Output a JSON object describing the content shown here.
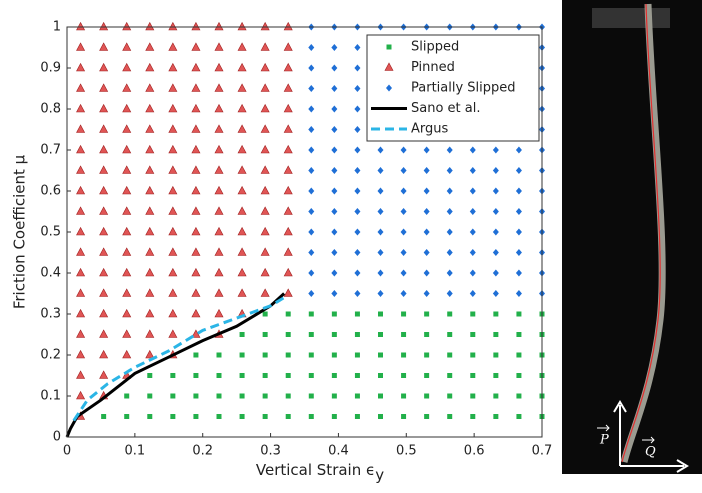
{
  "chart_data": {
    "type": "scatter",
    "xlabel": "Vertical Strain ϵ",
    "xlabel_sub": "y",
    "ylabel": "Friction Coefficient μ",
    "xlim": [
      0,
      0.7
    ],
    "ylim": [
      0,
      1
    ],
    "xticks": [
      0,
      0.1,
      0.2,
      0.3,
      0.4,
      0.5,
      0.6,
      0.7
    ],
    "yticks": [
      0,
      0.1,
      0.2,
      0.3,
      0.4,
      0.5,
      0.6,
      0.7,
      0.8,
      0.9,
      1
    ],
    "legend": "upper right",
    "annotations": [
      "P",
      "Q"
    ],
    "series": [
      {
        "name": "Slipped",
        "marker": "square",
        "color": "#22b04a",
        "columns": [
          {
            "x": 0.054,
            "y": [
              0.05
            ]
          },
          {
            "x": 0.088,
            "y": [
              0.05,
              0.1
            ]
          },
          {
            "x": 0.122,
            "y": [
              0.05,
              0.1,
              0.15
            ]
          },
          {
            "x": 0.156,
            "y": [
              0.05,
              0.1,
              0.15
            ]
          },
          {
            "x": 0.19,
            "y": [
              0.05,
              0.1,
              0.15,
              0.2
            ]
          },
          {
            "x": 0.224,
            "y": [
              0.05,
              0.1,
              0.15,
              0.2
            ]
          },
          {
            "x": 0.258,
            "y": [
              0.05,
              0.1,
              0.15,
              0.2,
              0.25
            ]
          },
          {
            "x": 0.292,
            "y": [
              0.05,
              0.1,
              0.15,
              0.2,
              0.25,
              0.3
            ]
          },
          {
            "x": 0.326,
            "y": [
              0.05,
              0.1,
              0.15,
              0.2,
              0.25,
              0.3
            ]
          },
          {
            "x": 0.36,
            "y": [
              0.05,
              0.1,
              0.15,
              0.2,
              0.25,
              0.3
            ]
          },
          {
            "x": 0.394,
            "y": [
              0.05,
              0.1,
              0.15,
              0.2,
              0.25,
              0.3
            ]
          },
          {
            "x": 0.428,
            "y": [
              0.05,
              0.1,
              0.15,
              0.2,
              0.25,
              0.3
            ]
          },
          {
            "x": 0.462,
            "y": [
              0.05,
              0.1,
              0.15,
              0.2,
              0.25,
              0.3
            ]
          },
          {
            "x": 0.496,
            "y": [
              0.05,
              0.1,
              0.15,
              0.2,
              0.25,
              0.3
            ]
          },
          {
            "x": 0.53,
            "y": [
              0.05,
              0.1,
              0.15,
              0.2,
              0.25,
              0.3
            ]
          },
          {
            "x": 0.564,
            "y": [
              0.05,
              0.1,
              0.15,
              0.2,
              0.25,
              0.3
            ]
          },
          {
            "x": 0.598,
            "y": [
              0.05,
              0.1,
              0.15,
              0.2,
              0.25,
              0.3
            ]
          },
          {
            "x": 0.632,
            "y": [
              0.05,
              0.1,
              0.15,
              0.2,
              0.25,
              0.3
            ]
          },
          {
            "x": 0.666,
            "y": [
              0.05,
              0.1,
              0.15,
              0.2,
              0.25,
              0.3
            ]
          },
          {
            "x": 0.7,
            "y": [
              0.05,
              0.1,
              0.15,
              0.2,
              0.25,
              0.3
            ]
          }
        ]
      },
      {
        "name": "Pinned",
        "marker": "triangle",
        "color": "#e05555",
        "columns": [
          {
            "x": 0.02,
            "y": [
              0.05,
              0.1,
              0.15,
              0.2,
              0.25,
              0.3,
              0.35,
              0.4,
              0.45,
              0.5,
              0.55,
              0.6,
              0.65,
              0.7,
              0.75,
              0.8,
              0.85,
              0.9,
              0.95,
              1
            ]
          },
          {
            "x": 0.054,
            "y": [
              0.1,
              0.15,
              0.2,
              0.25,
              0.3,
              0.35,
              0.4,
              0.45,
              0.5,
              0.55,
              0.6,
              0.65,
              0.7,
              0.75,
              0.8,
              0.85,
              0.9,
              0.95,
              1
            ]
          },
          {
            "x": 0.088,
            "y": [
              0.15,
              0.2,
              0.25,
              0.3,
              0.35,
              0.4,
              0.45,
              0.5,
              0.55,
              0.6,
              0.65,
              0.7,
              0.75,
              0.8,
              0.85,
              0.9,
              0.95,
              1
            ]
          },
          {
            "x": 0.122,
            "y": [
              0.2,
              0.25,
              0.3,
              0.35,
              0.4,
              0.45,
              0.5,
              0.55,
              0.6,
              0.65,
              0.7,
              0.75,
              0.8,
              0.85,
              0.9,
              0.95,
              1
            ]
          },
          {
            "x": 0.156,
            "y": [
              0.2,
              0.25,
              0.3,
              0.35,
              0.4,
              0.45,
              0.5,
              0.55,
              0.6,
              0.65,
              0.7,
              0.75,
              0.8,
              0.85,
              0.9,
              0.95,
              1
            ]
          },
          {
            "x": 0.19,
            "y": [
              0.25,
              0.3,
              0.35,
              0.4,
              0.45,
              0.5,
              0.55,
              0.6,
              0.65,
              0.7,
              0.75,
              0.8,
              0.85,
              0.9,
              0.95,
              1
            ]
          },
          {
            "x": 0.224,
            "y": [
              0.25,
              0.3,
              0.35,
              0.4,
              0.45,
              0.5,
              0.55,
              0.6,
              0.65,
              0.7,
              0.75,
              0.8,
              0.85,
              0.9,
              0.95,
              1
            ]
          },
          {
            "x": 0.258,
            "y": [
              0.3,
              0.35,
              0.4,
              0.45,
              0.5,
              0.55,
              0.6,
              0.65,
              0.7,
              0.75,
              0.8,
              0.85,
              0.9,
              0.95,
              1
            ]
          },
          {
            "x": 0.292,
            "y": [
              0.35,
              0.4,
              0.45,
              0.5,
              0.55,
              0.6,
              0.65,
              0.7,
              0.75,
              0.8,
              0.85,
              0.9,
              0.95,
              1
            ]
          },
          {
            "x": 0.326,
            "y": [
              0.35,
              0.4,
              0.45,
              0.5,
              0.55,
              0.6,
              0.65,
              0.7,
              0.75,
              0.8,
              0.85,
              0.9,
              0.95,
              1
            ]
          }
        ]
      },
      {
        "name": "Partially Slipped",
        "marker": "diamond",
        "color": "#1f6fd6",
        "columns": [
          {
            "x": 0.36,
            "y": [
              0.35,
              0.4,
              0.45,
              0.5,
              0.55,
              0.6,
              0.65,
              0.7,
              0.75,
              0.8,
              0.85,
              0.9,
              0.95,
              1
            ]
          },
          {
            "x": 0.394,
            "y": [
              0.35,
              0.4,
              0.45,
              0.5,
              0.55,
              0.6,
              0.65,
              0.7,
              0.75,
              0.8,
              0.85,
              0.9,
              0.95,
              1
            ]
          },
          {
            "x": 0.428,
            "y": [
              0.35,
              0.4,
              0.45,
              0.5,
              0.55,
              0.6,
              0.65,
              0.7,
              0.75,
              0.8,
              0.85,
              0.9,
              0.95,
              1
            ]
          },
          {
            "x": 0.462,
            "y": [
              0.35,
              0.4,
              0.45,
              0.5,
              0.55,
              0.6,
              0.65,
              0.7,
              0.75,
              0.8,
              0.85,
              0.9,
              0.95,
              1
            ]
          },
          {
            "x": 0.496,
            "y": [
              0.35,
              0.4,
              0.45,
              0.5,
              0.55,
              0.6,
              0.65,
              0.7,
              0.75,
              0.8,
              0.85,
              0.9,
              0.95,
              1
            ]
          },
          {
            "x": 0.53,
            "y": [
              0.35,
              0.4,
              0.45,
              0.5,
              0.55,
              0.6,
              0.65,
              0.7,
              0.75,
              0.8,
              0.85,
              0.9,
              0.95,
              1
            ]
          },
          {
            "x": 0.564,
            "y": [
              0.35,
              0.4,
              0.45,
              0.5,
              0.55,
              0.6,
              0.65,
              0.7,
              0.75,
              0.8,
              0.85,
              0.9,
              0.95,
              1
            ]
          },
          {
            "x": 0.598,
            "y": [
              0.35,
              0.4,
              0.45,
              0.5,
              0.55,
              0.6,
              0.65,
              0.7,
              0.75,
              0.8,
              0.85,
              0.9,
              0.95,
              1
            ]
          },
          {
            "x": 0.632,
            "y": [
              0.35,
              0.4,
              0.45,
              0.5,
              0.55,
              0.6,
              0.65,
              0.7,
              0.75,
              0.8,
              0.85,
              0.9,
              0.95,
              1
            ]
          },
          {
            "x": 0.666,
            "y": [
              0.35,
              0.4,
              0.45,
              0.5,
              0.55,
              0.6,
              0.65,
              0.7,
              0.75,
              0.8,
              0.85,
              0.9,
              0.95,
              1
            ]
          },
          {
            "x": 0.7,
            "y": [
              0.35,
              0.4,
              0.45,
              0.5,
              0.55,
              0.6,
              0.65,
              0.7,
              0.75,
              0.8,
              0.85,
              0.9,
              0.95,
              1
            ]
          }
        ]
      },
      {
        "name": "Sano et al.",
        "marker": "line",
        "color": "#000000",
        "x": [
          0,
          0.005,
          0.015,
          0.05,
          0.1,
          0.15,
          0.2,
          0.25,
          0.3,
          0.32
        ],
        "y": [
          0,
          0.02,
          0.05,
          0.09,
          0.155,
          0.195,
          0.235,
          0.27,
          0.32,
          0.35
        ]
      },
      {
        "name": "Argus",
        "marker": "dashed",
        "color": "#2bb5e6",
        "x": [
          0.01,
          0.03,
          0.06,
          0.1,
          0.15,
          0.2,
          0.25,
          0.3,
          0.32
        ],
        "y": [
          0.04,
          0.09,
          0.13,
          0.17,
          0.21,
          0.26,
          0.29,
          0.32,
          0.34
        ]
      }
    ]
  }
}
